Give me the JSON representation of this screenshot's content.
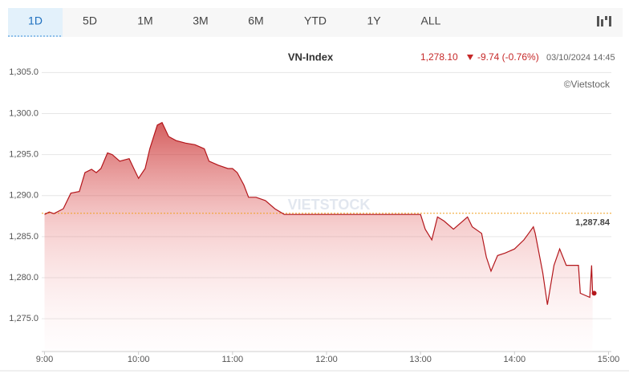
{
  "tabs": [
    "1D",
    "5D",
    "1M",
    "3M",
    "6M",
    "YTD",
    "1Y",
    "ALL"
  ],
  "chart_data": {
    "type": "area",
    "title": "VN-Index",
    "last_price": "1,278.10",
    "change": "-9.74 (-0.76%)",
    "timestamp": "03/10/2024 14:45",
    "source": "©Vietstock",
    "watermark": "VIETSTOCK",
    "color": "#b3161b",
    "x": [
      9.0,
      9.05,
      9.1,
      9.2,
      9.28,
      9.37,
      9.43,
      9.5,
      9.55,
      9.6,
      9.67,
      9.72,
      9.8,
      9.9,
      9.95,
      10.0,
      10.07,
      10.12,
      10.2,
      10.25,
      10.32,
      10.4,
      10.5,
      10.6,
      10.7,
      10.75,
      10.85,
      10.95,
      11.0,
      11.05,
      11.12,
      11.17,
      11.25,
      11.35,
      11.45,
      11.55,
      12.0,
      12.5,
      13.0,
      13.05,
      13.12,
      13.18,
      13.25,
      13.35,
      13.45,
      13.5,
      13.55,
      13.65,
      13.7,
      13.75,
      13.82,
      13.9,
      14.0,
      14.1,
      14.15,
      14.2,
      14.22,
      14.3,
      14.35,
      14.42,
      14.48,
      14.55,
      14.68,
      14.7,
      14.8,
      14.82,
      14.83
    ],
    "values": [
      1287.7,
      1288.0,
      1287.8,
      1288.4,
      1290.3,
      1290.5,
      1292.8,
      1293.2,
      1292.8,
      1293.3,
      1295.2,
      1295.0,
      1294.2,
      1294.5,
      1293.3,
      1292.1,
      1293.3,
      1295.7,
      1298.6,
      1298.9,
      1297.2,
      1296.7,
      1296.4,
      1296.2,
      1295.7,
      1294.2,
      1293.7,
      1293.3,
      1293.3,
      1292.8,
      1291.3,
      1289.8,
      1289.8,
      1289.4,
      1288.4,
      1287.7,
      1287.7,
      1287.7,
      1287.7,
      1285.9,
      1284.6,
      1287.4,
      1286.9,
      1285.9,
      1286.9,
      1287.4,
      1286.2,
      1285.4,
      1282.5,
      1280.8,
      1282.7,
      1283.0,
      1283.5,
      1284.6,
      1285.4,
      1286.2,
      1285.4,
      1280.6,
      1276.7,
      1281.5,
      1283.5,
      1281.5,
      1281.5,
      1278.1,
      1277.6,
      1281.5,
      1278.1
    ],
    "reference": {
      "value": 1287.84,
      "label": "1,287.84"
    },
    "xlim": [
      8.97,
      15.03
    ],
    "ylim": [
      1271,
      1306.5
    ],
    "xticks": [
      {
        "value": 9,
        "label": "9:00"
      },
      {
        "value": 10,
        "label": "10:00"
      },
      {
        "value": 11,
        "label": "11:00"
      },
      {
        "value": 12,
        "label": "12:00"
      },
      {
        "value": 13,
        "label": "13:00"
      },
      {
        "value": 14,
        "label": "14:00"
      },
      {
        "value": 15,
        "label": "15:00"
      }
    ],
    "yticks": [
      {
        "value": 1275,
        "label": "1,275.0"
      },
      {
        "value": 1280,
        "label": "1,280.0"
      },
      {
        "value": 1285,
        "label": "1,285.0"
      },
      {
        "value": 1290,
        "label": "1,290.0"
      },
      {
        "value": 1295,
        "label": "1,295.0"
      },
      {
        "value": 1300,
        "label": "1,300.0"
      },
      {
        "value": 1305,
        "label": "1,305.0"
      }
    ],
    "grid": true
  }
}
